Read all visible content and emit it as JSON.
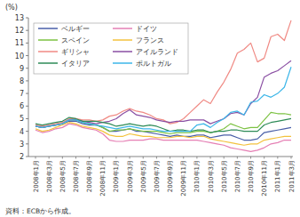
{
  "chart_data": {
    "type": "line",
    "y_label": "(%)",
    "source": "資料：ECBから作成。",
    "categories": [
      "2008年1月",
      null,
      "2008年3月",
      null,
      "2008年5月",
      null,
      "2008年7月",
      null,
      "2008年9月",
      null,
      "2008年11月",
      null,
      "2009年1月",
      null,
      "2009年3月",
      null,
      "2009年5月",
      null,
      "2009年7月",
      null,
      "2009年9月",
      null,
      "2009年11月",
      null,
      "2010年1月",
      null,
      "2010年3月",
      null,
      "2010年5月",
      null,
      "2010年7月",
      null,
      "2010年9月",
      null,
      "2010年11月",
      null,
      "2011年1月",
      null,
      "2011年3月"
    ],
    "series": [
      {
        "name": "ベルギー",
        "color": "#4a5fa8",
        "values": [
          4.4,
          4.3,
          4.4,
          4.5,
          4.6,
          4.8,
          4.8,
          4.6,
          4.5,
          4.5,
          4.3,
          4.0,
          4.0,
          4.1,
          4.2,
          4.0,
          4.0,
          3.9,
          3.8,
          3.7,
          3.6,
          3.7,
          3.6,
          3.6,
          3.7,
          3.7,
          3.5,
          3.6,
          3.7,
          3.7,
          3.5,
          3.3,
          3.3,
          3.4,
          3.9,
          4.0,
          4.1,
          4.2,
          4.3
        ]
      },
      {
        "name": "ドイツ",
        "color": "#e57fb4",
        "values": [
          4.1,
          3.9,
          4.0,
          4.2,
          4.3,
          4.6,
          4.5,
          4.3,
          4.2,
          4.1,
          3.8,
          3.3,
          3.2,
          3.2,
          3.3,
          3.3,
          3.3,
          3.4,
          3.4,
          3.3,
          3.3,
          3.3,
          3.3,
          3.3,
          3.3,
          3.2,
          3.1,
          3.0,
          2.9,
          2.7,
          2.6,
          2.5,
          2.4,
          2.5,
          2.7,
          3.0,
          3.1,
          3.3,
          3.3
        ]
      },
      {
        "name": "スペイン",
        "color": "#7cc242",
        "values": [
          4.4,
          4.3,
          4.4,
          4.5,
          4.6,
          4.9,
          4.9,
          4.7,
          4.6,
          4.5,
          4.3,
          4.0,
          4.1,
          4.1,
          4.2,
          4.1,
          4.0,
          4.0,
          4.0,
          3.9,
          3.8,
          3.9,
          3.9,
          3.9,
          4.0,
          4.0,
          3.9,
          4.0,
          4.2,
          4.6,
          4.4,
          4.2,
          4.3,
          4.3,
          4.9,
          5.5,
          5.4,
          5.4,
          5.3
        ]
      },
      {
        "name": "フランス",
        "color": "#f3c23e",
        "values": [
          4.2,
          4.0,
          4.1,
          4.3,
          4.5,
          4.7,
          4.6,
          4.4,
          4.3,
          4.2,
          4.0,
          3.7,
          3.6,
          3.6,
          3.8,
          3.7,
          3.6,
          3.6,
          3.5,
          3.5,
          3.5,
          3.6,
          3.6,
          3.5,
          3.6,
          3.6,
          3.4,
          3.3,
          3.2,
          3.1,
          3.0,
          2.9,
          3.0,
          3.0,
          3.3,
          3.4,
          3.5,
          3.6,
          3.6
        ]
      },
      {
        "name": "ギリシャ",
        "color": "#f08a84",
        "values": [
          4.5,
          4.4,
          4.5,
          4.6,
          4.7,
          5.0,
          5.0,
          4.9,
          4.9,
          4.8,
          4.9,
          5.2,
          5.3,
          5.6,
          5.8,
          5.6,
          5.5,
          5.3,
          5.0,
          4.9,
          4.6,
          4.7,
          5.0,
          5.5,
          6.0,
          6.5,
          6.2,
          7.1,
          7.9,
          8.9,
          10.2,
          10.5,
          11.0,
          9.5,
          9.8,
          11.5,
          11.7,
          11.2,
          12.8
        ]
      },
      {
        "name": "アイルランド",
        "color": "#8a4fa3",
        "values": [
          4.4,
          4.3,
          4.4,
          4.5,
          4.6,
          4.9,
          4.9,
          4.8,
          4.7,
          4.6,
          4.7,
          4.8,
          5.0,
          5.4,
          5.7,
          5.3,
          5.2,
          5.1,
          4.9,
          4.8,
          4.7,
          4.8,
          4.8,
          4.9,
          4.9,
          4.9,
          4.6,
          4.8,
          5.0,
          5.4,
          5.5,
          5.3,
          6.2,
          6.7,
          8.3,
          8.6,
          8.8,
          9.2,
          9.6
        ]
      },
      {
        "name": "イタリア",
        "color": "#2e8b57",
        "values": [
          4.6,
          4.5,
          4.6,
          4.7,
          4.8,
          5.1,
          5.0,
          4.8,
          4.8,
          4.8,
          4.7,
          4.6,
          4.4,
          4.5,
          4.6,
          4.5,
          4.4,
          4.5,
          4.4,
          4.2,
          4.0,
          4.1,
          4.1,
          4.0,
          4.1,
          4.1,
          3.9,
          4.0,
          4.0,
          4.1,
          4.1,
          4.0,
          4.0,
          4.0,
          4.5,
          4.7,
          4.8,
          4.9,
          5.0
        ]
      },
      {
        "name": "ポルトガル",
        "color": "#3cb6e8",
        "values": [
          4.4,
          4.3,
          4.4,
          4.5,
          4.6,
          4.9,
          4.9,
          4.7,
          4.6,
          4.5,
          4.4,
          4.3,
          4.2,
          4.3,
          4.4,
          4.3,
          4.2,
          4.2,
          4.1,
          4.0,
          4.0,
          4.0,
          4.0,
          4.0,
          4.5,
          4.6,
          4.3,
          4.7,
          5.0,
          5.5,
          5.6,
          5.3,
          6.3,
          6.4,
          6.9,
          6.7,
          7.0,
          7.5,
          9.1
        ]
      }
    ],
    "ylim": [
      2,
      13
    ],
    "yticks": [
      2,
      3,
      4,
      5,
      6,
      7,
      8,
      9,
      10,
      11,
      12,
      13
    ],
    "grid": false,
    "legend": "upper left"
  }
}
